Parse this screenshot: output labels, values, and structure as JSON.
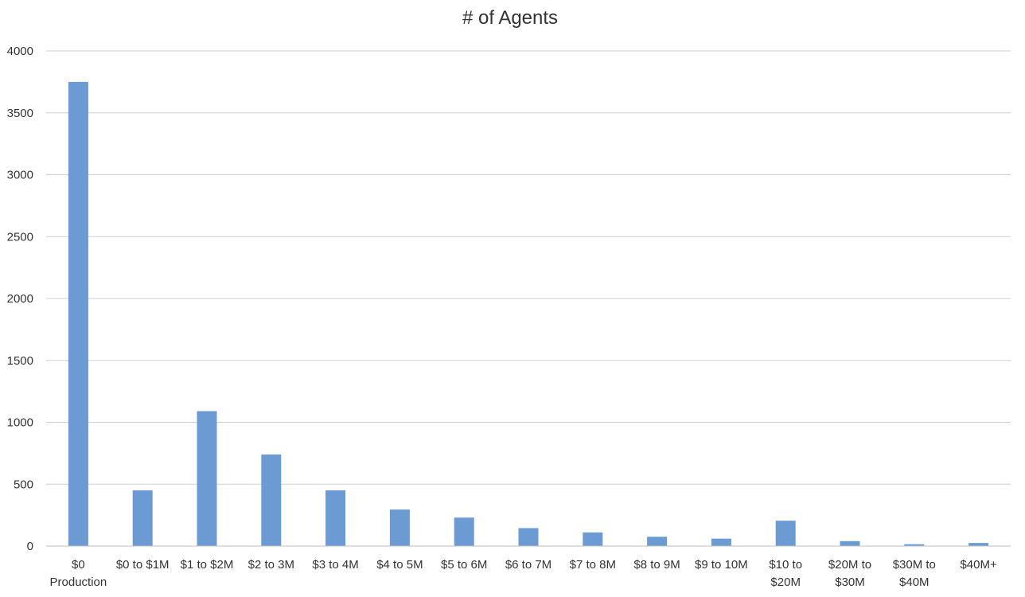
{
  "chart_data": {
    "type": "bar",
    "title": "# of Agents",
    "xlabel": "",
    "ylabel": "",
    "categories": [
      [
        "$0",
        "Production"
      ],
      [
        "$0 to $1M"
      ],
      [
        "$1 to $2M"
      ],
      [
        "$2 to 3M"
      ],
      [
        "$3 to 4M"
      ],
      [
        "$4 to 5M"
      ],
      [
        "$5 to 6M"
      ],
      [
        "$6 to 7M"
      ],
      [
        "$7 to 8M"
      ],
      [
        "$8 to 9M"
      ],
      [
        "$9 to 10M"
      ],
      [
        "$10 to",
        "$20M"
      ],
      [
        "$20M to",
        "$30M"
      ],
      [
        "$30M to",
        "$40M"
      ],
      [
        "$40M+"
      ]
    ],
    "values": [
      3750,
      450,
      1090,
      740,
      450,
      295,
      230,
      145,
      110,
      75,
      60,
      205,
      40,
      15,
      25
    ],
    "ylim": [
      0,
      4000
    ],
    "yticks": [
      "0",
      "500",
      "1000",
      "1500",
      "2000",
      "2500",
      "3000",
      "3500",
      "4000"
    ],
    "grid": true,
    "legend": "none",
    "bar_color": "#6b9bd2"
  }
}
